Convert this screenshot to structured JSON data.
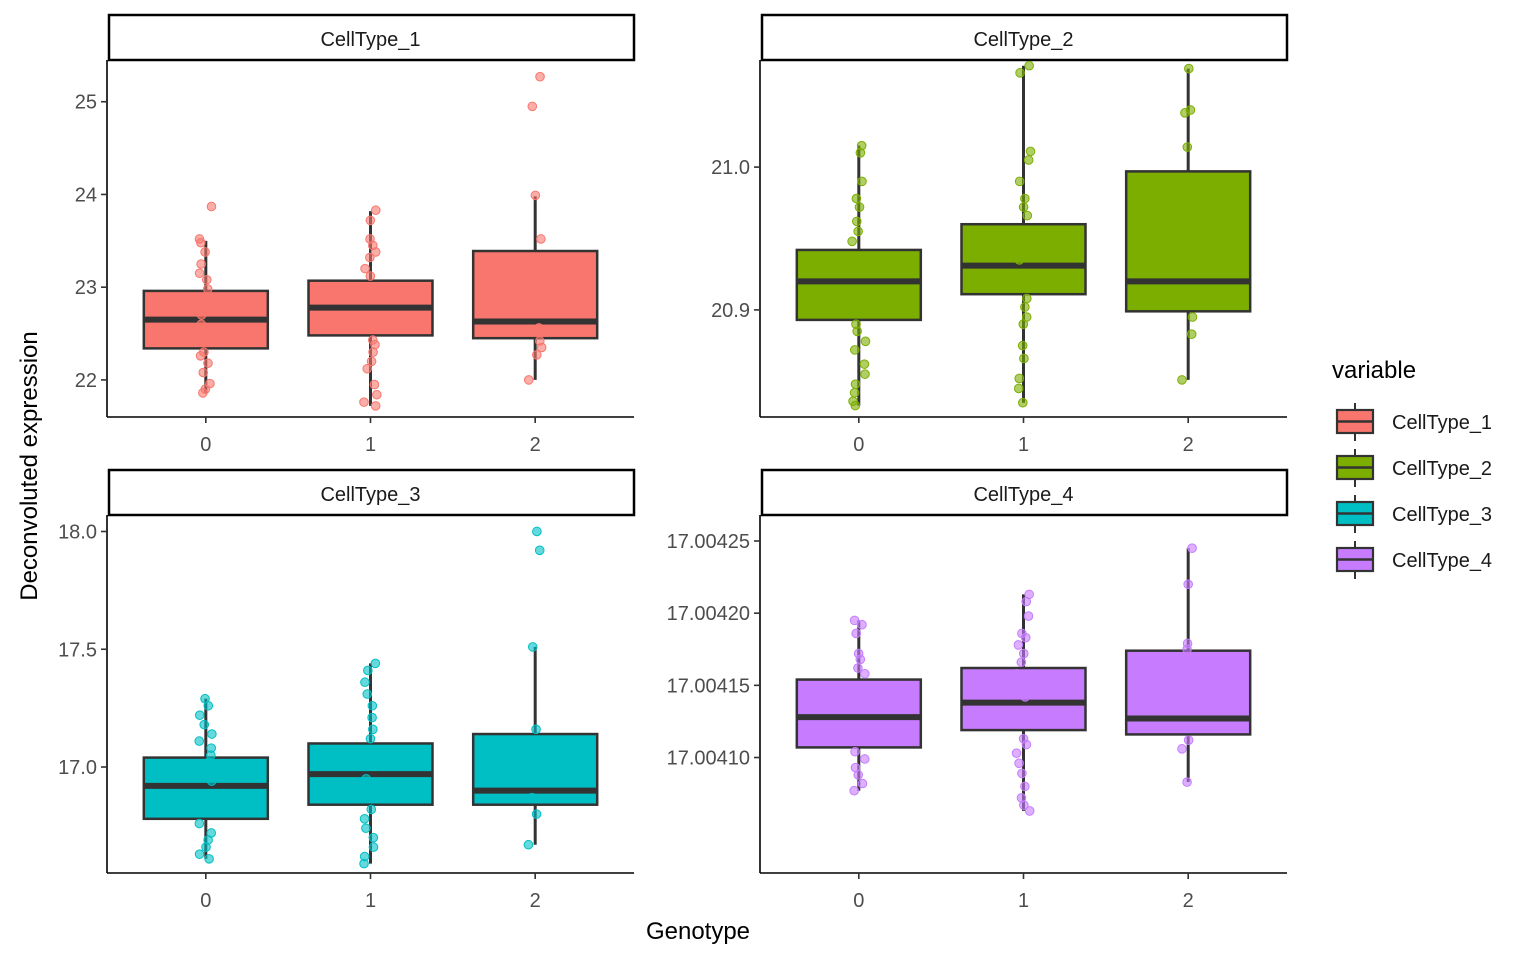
{
  "chart_data": {
    "type": "box",
    "x_label": "Genotype",
    "y_label": "Deconvoluted expression",
    "categories": [
      "0",
      "1",
      "2"
    ],
    "legend": {
      "title": "variable",
      "position": "right",
      "entries": [
        "CellType_1",
        "CellType_2",
        "CellType_3",
        "CellType_4"
      ]
    },
    "panels": [
      {
        "name": "CellType_1",
        "color": "#F8766D",
        "ylim": [
          21.6,
          25.45
        ],
        "yticks": [
          22,
          23,
          24,
          25
        ],
        "ytick_labels": [
          "22",
          "23",
          "24",
          "25"
        ],
        "boxes": [
          {
            "x": "0",
            "q1": 22.34,
            "median": 22.65,
            "q3": 22.96,
            "whisker_low": 21.86,
            "whisker_high": 23.5,
            "points": [
              23.87,
              23.52,
              23.48,
              23.38,
              23.25,
              23.15,
              23.08,
              22.98,
              22.85,
              22.7,
              22.6,
              22.5,
              22.42,
              22.3,
              22.26,
              22.18,
              22.08,
              21.96,
              21.9,
              21.86
            ]
          },
          {
            "x": "1",
            "q1": 22.48,
            "median": 22.78,
            "q3": 23.07,
            "whisker_low": 21.72,
            "whisker_high": 23.82,
            "points": [
              23.83,
              23.72,
              23.52,
              23.45,
              23.38,
              23.32,
              23.2,
              23.12,
              23.0,
              22.9,
              22.65,
              22.55,
              22.43,
              22.38,
              22.3,
              22.2,
              22.12,
              21.95,
              21.84,
              21.76,
              21.72
            ]
          },
          {
            "x": "2",
            "q1": 22.45,
            "median": 22.63,
            "q3": 23.39,
            "whisker_low": 22.0,
            "whisker_high": 23.98,
            "points": [
              25.27,
              24.95,
              23.99,
              23.52,
              22.56,
              22.42,
              22.35,
              22.27,
              22.0
            ]
          }
        ]
      },
      {
        "name": "CellType_2",
        "color": "#7CAE00",
        "ylim": [
          20.825,
          21.075
        ],
        "yticks": [
          20.9,
          21.0
        ],
        "ytick_labels": [
          "20.9",
          "21.0"
        ],
        "boxes": [
          {
            "x": "0",
            "q1": 20.893,
            "median": 20.92,
            "q3": 20.942,
            "whisker_low": 20.833,
            "whisker_high": 21.015,
            "points": [
              21.015,
              21.01,
              20.99,
              20.978,
              20.972,
              20.962,
              20.955,
              20.948,
              20.936,
              20.928,
              20.912,
              20.905,
              20.89,
              20.885,
              20.878,
              20.872,
              20.862,
              20.855,
              20.848,
              20.842,
              20.836,
              20.833
            ]
          },
          {
            "x": "1",
            "q1": 20.911,
            "median": 20.931,
            "q3": 20.96,
            "whisker_low": 20.835,
            "whisker_high": 21.071,
            "points": [
              21.071,
              21.066,
              21.011,
              21.005,
              20.99,
              20.978,
              20.972,
              20.966,
              20.952,
              20.945,
              20.935,
              20.92,
              20.908,
              20.902,
              20.895,
              20.89,
              20.875,
              20.866,
              20.852,
              20.845,
              20.835
            ]
          },
          {
            "x": "2",
            "q1": 20.899,
            "median": 20.92,
            "q3": 20.997,
            "whisker_low": 20.851,
            "whisker_high": 21.069,
            "points": [
              21.069,
              21.04,
              21.038,
              21.014,
              20.895,
              20.883,
              20.851
            ]
          }
        ]
      },
      {
        "name": "CellType_3",
        "color": "#00BFC4",
        "ylim": [
          16.55,
          18.07
        ],
        "yticks": [
          17.0,
          17.5,
          18.0
        ],
        "ytick_labels": [
          "17.0",
          "17.5",
          "18.0"
        ],
        "boxes": [
          {
            "x": "0",
            "q1": 16.78,
            "median": 16.92,
            "q3": 17.04,
            "whisker_low": 16.61,
            "whisker_high": 17.29,
            "points": [
              17.29,
              17.26,
              17.22,
              17.18,
              17.14,
              17.11,
              17.08,
              17.05,
              17.02,
              16.98,
              16.94,
              16.86,
              16.82,
              16.76,
              16.72,
              16.69,
              16.66,
              16.63,
              16.61
            ]
          },
          {
            "x": "1",
            "q1": 16.84,
            "median": 16.97,
            "q3": 17.1,
            "whisker_low": 16.59,
            "whisker_high": 17.44,
            "points": [
              17.44,
              17.41,
              17.36,
              17.31,
              17.26,
              17.21,
              17.16,
              17.12,
              17.06,
              17.02,
              16.95,
              16.9,
              16.87,
              16.82,
              16.78,
              16.74,
              16.7,
              16.66,
              16.62,
              16.59
            ]
          },
          {
            "x": "2",
            "q1": 16.84,
            "median": 16.9,
            "q3": 17.14,
            "whisker_low": 16.67,
            "whisker_high": 17.51,
            "points": [
              18.0,
              17.92,
              17.51,
              17.16,
              16.87,
              16.8,
              16.67
            ]
          }
        ]
      },
      {
        "name": "CellType_4",
        "color": "#C77CFF",
        "ylim": [
          17.00402,
          17.004268
        ],
        "yticks": [
          17.0041,
          17.00415,
          17.0042,
          17.00425
        ],
        "ytick_labels": [
          "17.00410",
          "17.00415",
          "17.00420",
          "17.00425"
        ],
        "boxes": [
          {
            "x": "0",
            "q1": 17.004107,
            "median": 17.004128,
            "q3": 17.004154,
            "whisker_low": 17.004077,
            "whisker_high": 17.004195,
            "points": [
              17.004195,
              17.004192,
              17.004186,
              17.004172,
              17.004168,
              17.004162,
              17.004158,
              17.004148,
              17.004142,
              17.004135,
              17.00412,
              17.004114,
              17.004104,
              17.004099,
              17.004093,
              17.004088,
              17.004082,
              17.004077
            ]
          },
          {
            "x": "1",
            "q1": 17.004119,
            "median": 17.004138,
            "q3": 17.004162,
            "whisker_low": 17.004063,
            "whisker_high": 17.004213,
            "points": [
              17.004213,
              17.004208,
              17.004198,
              17.004186,
              17.004183,
              17.004178,
              17.004172,
              17.004166,
              17.004158,
              17.00415,
              17.004142,
              17.004128,
              17.004113,
              17.004109,
              17.004103,
              17.004096,
              17.004089,
              17.00408,
              17.004072,
              17.004067,
              17.004063
            ]
          },
          {
            "x": "2",
            "q1": 17.004116,
            "median": 17.004127,
            "q3": 17.004174,
            "whisker_low": 17.004083,
            "whisker_high": 17.004245,
            "points": [
              17.004245,
              17.00422,
              17.004179,
              17.004175,
              17.004112,
              17.004106,
              17.004083
            ]
          }
        ]
      }
    ]
  }
}
